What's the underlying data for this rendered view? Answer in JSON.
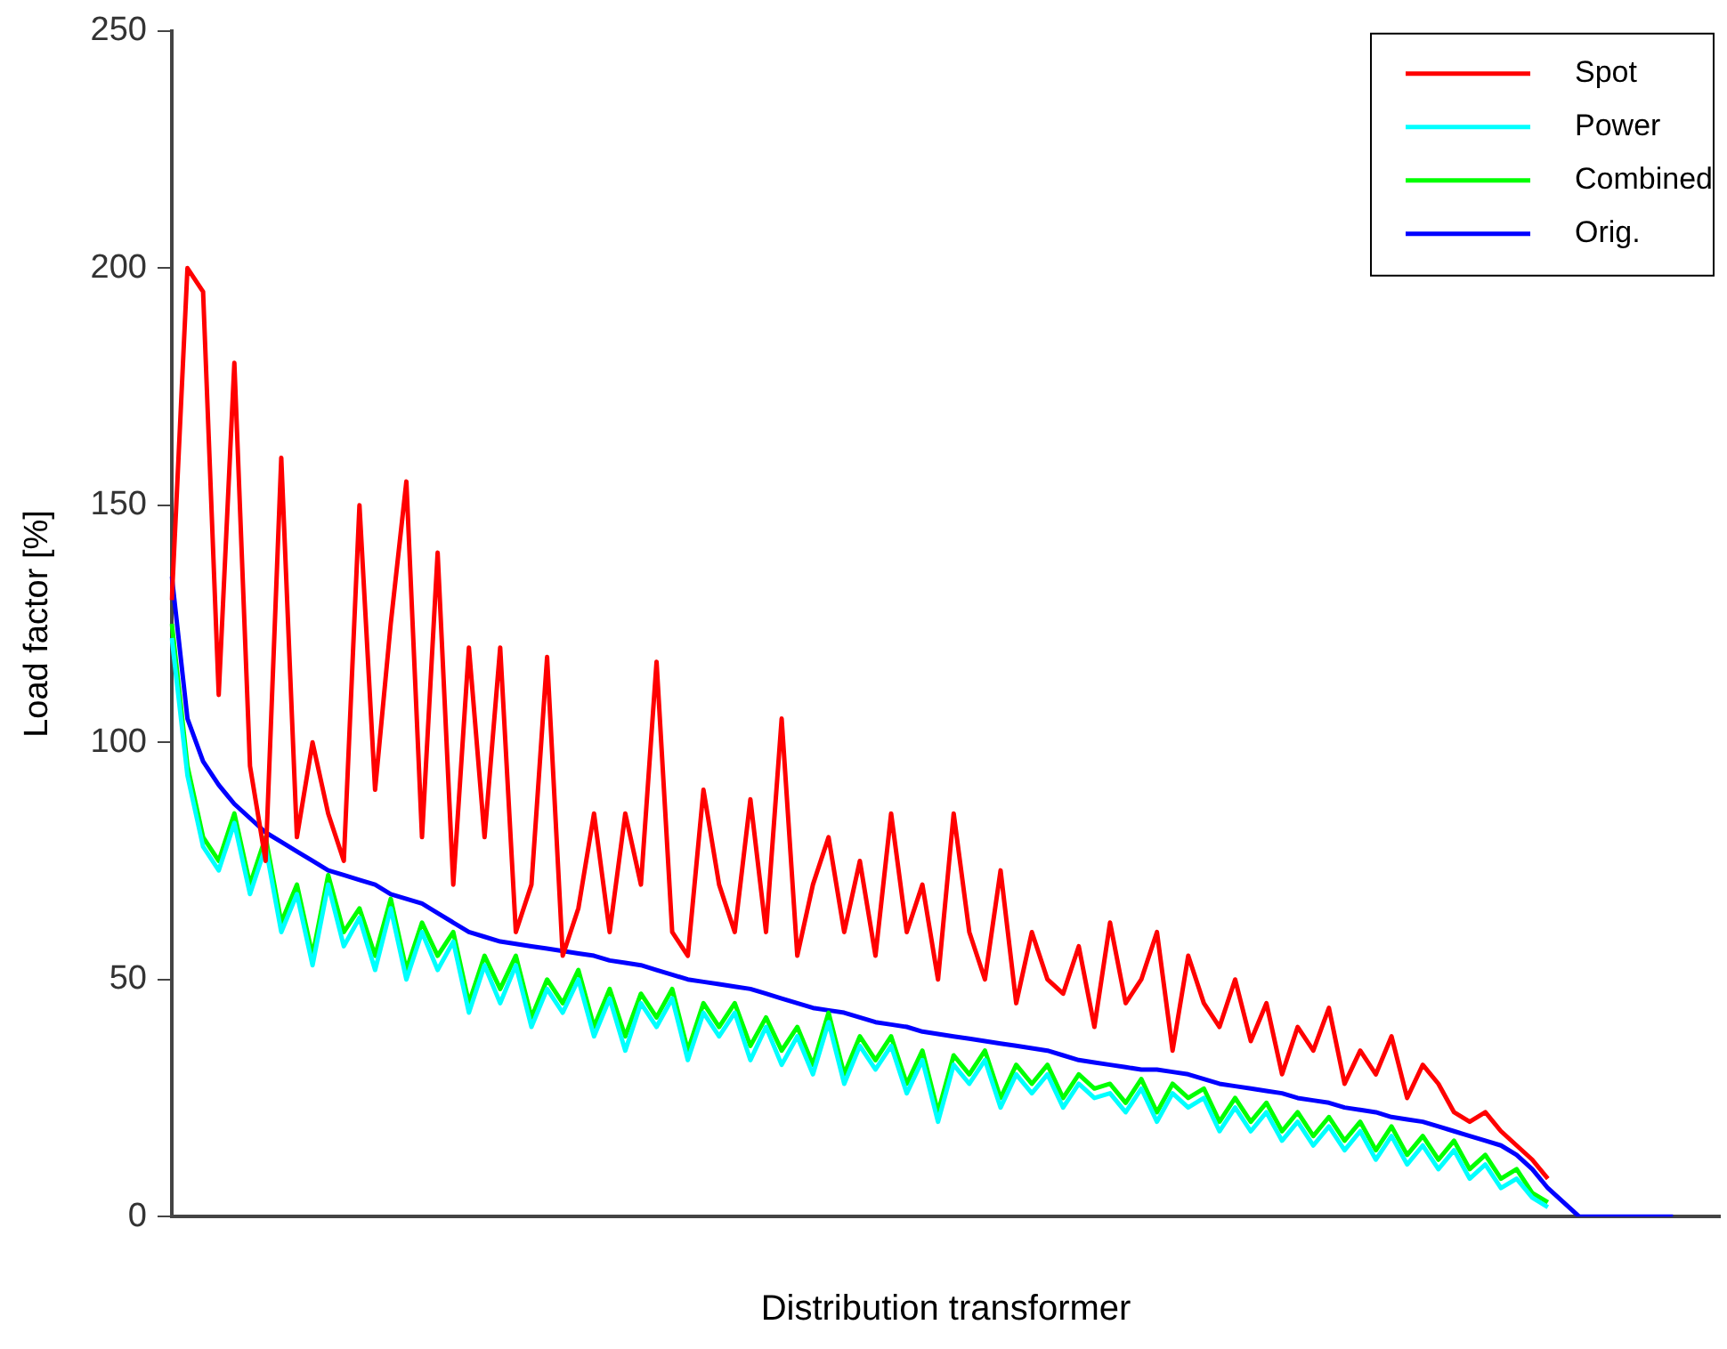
{
  "chart_data": {
    "type": "line",
    "xlabel": "Distribution transformer",
    "ylabel": "Load factor [%]",
    "categories": [
      null,
      null,
      null,
      null,
      null,
      null,
      null,
      null,
      null,
      null,
      null,
      null,
      null,
      null,
      null,
      null,
      null,
      null,
      null,
      null,
      null,
      null,
      null,
      null,
      null,
      null,
      null,
      null,
      null,
      null,
      null,
      null,
      null,
      null,
      null,
      null,
      null,
      null,
      null,
      null,
      null,
      null,
      null,
      null,
      null,
      null,
      null,
      null,
      null,
      null,
      null,
      null,
      null,
      null,
      null,
      null,
      null,
      null,
      null,
      null,
      null,
      null,
      null,
      null,
      null,
      null,
      null,
      null,
      null,
      null,
      null,
      null,
      null,
      null,
      null,
      null,
      null,
      null,
      null,
      null,
      null,
      null,
      null,
      null,
      null,
      null,
      null,
      null,
      null,
      null,
      null,
      null,
      null,
      null,
      null,
      null,
      null,
      null,
      null,
      null
    ],
    "ylim": [
      0,
      250
    ],
    "yticks": [
      0,
      50,
      100,
      150,
      200,
      250
    ],
    "grid": false,
    "legend": "top right",
    "marker": "none",
    "line_style": "solid",
    "series": [
      {
        "name": "Spot",
        "color": "#ff0000",
        "values": [
          130,
          200,
          195,
          110,
          180,
          95,
          75,
          160,
          80,
          100,
          85,
          75,
          150,
          90,
          125,
          155,
          80,
          140,
          70,
          120,
          80,
          120,
          60,
          70,
          118,
          55,
          65,
          85,
          60,
          85,
          70,
          117,
          60,
          55,
          90,
          70,
          60,
          88,
          60,
          105,
          55,
          70,
          80,
          60,
          75,
          55,
          85,
          60,
          70,
          50,
          85,
          60,
          50,
          73,
          45,
          60,
          50,
          47,
          57,
          40,
          62,
          45,
          50,
          60,
          35,
          55,
          45,
          40,
          50,
          37,
          45,
          30,
          40,
          35,
          44,
          28,
          35,
          30,
          38,
          25,
          32,
          28,
          22,
          20,
          22,
          18,
          15,
          12,
          8,
          null,
          null,
          null,
          null,
          null,
          null,
          null,
          null,
          null,
          null,
          null
        ]
      },
      {
        "name": "Power",
        "color": "#00ffff",
        "values": [
          122,
          93,
          78,
          73,
          83,
          68,
          78,
          60,
          68,
          53,
          70,
          57,
          63,
          52,
          65,
          50,
          60,
          52,
          58,
          43,
          53,
          45,
          53,
          40,
          48,
          43,
          50,
          38,
          46,
          35,
          45,
          40,
          46,
          33,
          43,
          38,
          43,
          33,
          40,
          32,
          38,
          30,
          41,
          28,
          36,
          31,
          36,
          26,
          33,
          20,
          32,
          28,
          33,
          23,
          30,
          26,
          30,
          23,
          28,
          25,
          26,
          22,
          27,
          20,
          26,
          23,
          25,
          18,
          23,
          18,
          22,
          16,
          20,
          15,
          19,
          14,
          18,
          12,
          17,
          11,
          15,
          10,
          14,
          8,
          11,
          6,
          8,
          4,
          2,
          null,
          null,
          null,
          null,
          null,
          null,
          null,
          null,
          null,
          null,
          null
        ]
      },
      {
        "name": "Combined",
        "color": "#00ff00",
        "values": [
          125,
          95,
          80,
          75,
          85,
          70,
          80,
          62,
          70,
          55,
          72,
          60,
          65,
          55,
          67,
          52,
          62,
          55,
          60,
          45,
          55,
          48,
          55,
          42,
          50,
          45,
          52,
          40,
          48,
          38,
          47,
          42,
          48,
          35,
          45,
          40,
          45,
          36,
          42,
          35,
          40,
          32,
          43,
          30,
          38,
          33,
          38,
          28,
          35,
          22,
          34,
          30,
          35,
          25,
          32,
          28,
          32,
          25,
          30,
          27,
          28,
          24,
          29,
          22,
          28,
          25,
          27,
          20,
          25,
          20,
          24,
          18,
          22,
          17,
          21,
          16,
          20,
          14,
          19,
          13,
          17,
          12,
          16,
          10,
          13,
          8,
          10,
          5,
          3,
          null,
          null,
          null,
          null,
          null,
          null,
          null,
          null,
          null,
          null,
          null
        ]
      },
      {
        "name": "Orig.",
        "color": "#0000ff",
        "values": [
          135,
          105,
          96,
          91,
          87,
          84,
          81,
          79,
          77,
          75,
          73,
          72,
          71,
          70,
          68,
          67,
          66,
          64,
          62,
          60,
          59,
          58,
          57.5,
          57,
          56.5,
          56,
          55.5,
          55,
          54,
          53.5,
          53,
          52,
          51,
          50,
          49.5,
          49,
          48.5,
          48,
          47,
          46,
          45,
          44,
          43.5,
          43,
          42,
          41,
          40.5,
          40,
          39,
          38.5,
          38,
          37.5,
          37,
          36.5,
          36,
          35.5,
          35,
          34,
          33,
          32.5,
          32,
          31.5,
          31,
          31,
          30.5,
          30,
          29,
          28,
          27.5,
          27,
          26.5,
          26,
          25,
          24.5,
          24,
          23,
          22.5,
          22,
          21,
          20.5,
          20,
          19,
          18,
          17,
          16,
          15,
          13,
          10,
          6,
          3,
          0,
          0,
          0,
          0,
          0,
          0,
          0,
          null,
          null,
          null
        ]
      }
    ]
  }
}
